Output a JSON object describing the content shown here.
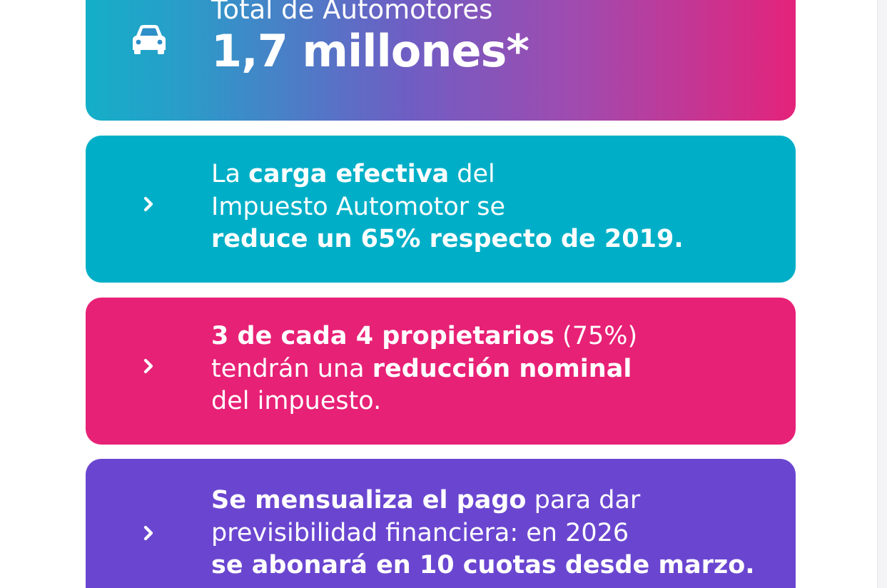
{
  "cards": [
    {
      "icon": "car-icon",
      "color": "gradient: #14afc8 → #e4237a",
      "label": "Total de Automotores",
      "value": "1,7 millones*"
    },
    {
      "icon": "chevron-right-icon",
      "color": "#00afc7",
      "lines": [
        [
          "La ",
          "carga efectiva",
          " del"
        ],
        [
          "Impuesto Automotor se"
        ],
        [
          "reduce un 65% respecto de 2019."
        ]
      ]
    },
    {
      "icon": "chevron-right-icon",
      "color": "#e72176",
      "lines": [
        [
          "3 de cada 4 propietarios",
          " (75%)"
        ],
        [
          "tendrán una ",
          "reducción nominal"
        ],
        [
          "del impuesto."
        ]
      ]
    },
    {
      "icon": "chevron-right-icon",
      "color": "#6a46d0",
      "lines": [
        [
          "Se mensualiza el pago",
          " para dar"
        ],
        [
          "previsibilidad financiera: en 2026"
        ],
        [
          "se abonará en 10 cuotas desde marzo."
        ]
      ]
    }
  ]
}
